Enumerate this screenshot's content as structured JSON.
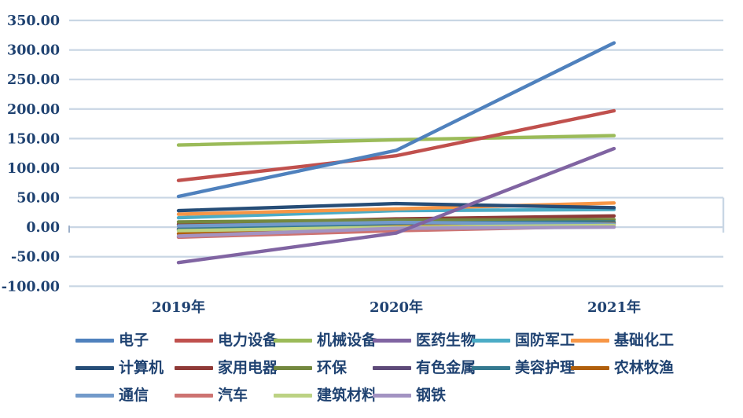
{
  "chart_data": {
    "type": "line",
    "title": "",
    "xlabel": "",
    "ylabel": "",
    "categories": [
      "2019年",
      "2020年",
      "2021年"
    ],
    "y_ticks": [
      350,
      300,
      250,
      200,
      150,
      100,
      50,
      0,
      -50,
      -100
    ],
    "y_tick_labels": [
      "350.00",
      "300.00",
      "250.00",
      "200.00",
      "150.00",
      "100.00",
      "50.00",
      "0.00",
      "-50.00",
      "-100.00"
    ],
    "ylim": [
      -100,
      350
    ],
    "grid": true,
    "legend_position": "bottom",
    "series": [
      {
        "name": "电子",
        "color": "#4F81BD",
        "values": [
          52,
          130,
          312
        ]
      },
      {
        "name": "电力设备",
        "color": "#C0504D",
        "values": [
          79,
          121,
          197
        ]
      },
      {
        "name": "机械设备",
        "color": "#9BBB59",
        "values": [
          139,
          148,
          155
        ]
      },
      {
        "name": "医药生物",
        "color": "#8064A2",
        "values": [
          -60,
          -10,
          133
        ]
      },
      {
        "name": "国防军工",
        "color": "#4BACC6",
        "values": [
          16,
          28,
          30
        ]
      },
      {
        "name": "基础化工",
        "color": "#F79646",
        "values": [
          22,
          31,
          41
        ]
      },
      {
        "name": "计算机",
        "color": "#264D77",
        "values": [
          28,
          40,
          33
        ]
      },
      {
        "name": "家用电器",
        "color": "#8F3A37",
        "values": [
          5,
          14,
          19
        ]
      },
      {
        "name": "环保",
        "color": "#73883F",
        "values": [
          9,
          12,
          13
        ]
      },
      {
        "name": "有色金属",
        "color": "#5E4A79",
        "values": [
          -3,
          3,
          8
        ]
      },
      {
        "name": "美容护理",
        "color": "#34798F",
        "values": [
          -4,
          7,
          9
        ]
      },
      {
        "name": "农林牧渔",
        "color": "#B05F0B",
        "values": [
          -11,
          1,
          6
        ]
      },
      {
        "name": "通信",
        "color": "#729ACA",
        "values": [
          2,
          8,
          5
        ]
      },
      {
        "name": "汽车",
        "color": "#CD7371",
        "values": [
          -17,
          -6,
          2
        ]
      },
      {
        "name": "建筑材料",
        "color": "#BCD283",
        "values": [
          -6,
          0,
          3
        ]
      },
      {
        "name": "钢铁",
        "color": "#A393C2",
        "values": [
          -15,
          -2,
          0
        ]
      }
    ],
    "style": {
      "axis_label_color": "#1F4271",
      "gridline_color": "#C9D6E4",
      "background_color": "#FFFFFF"
    }
  }
}
